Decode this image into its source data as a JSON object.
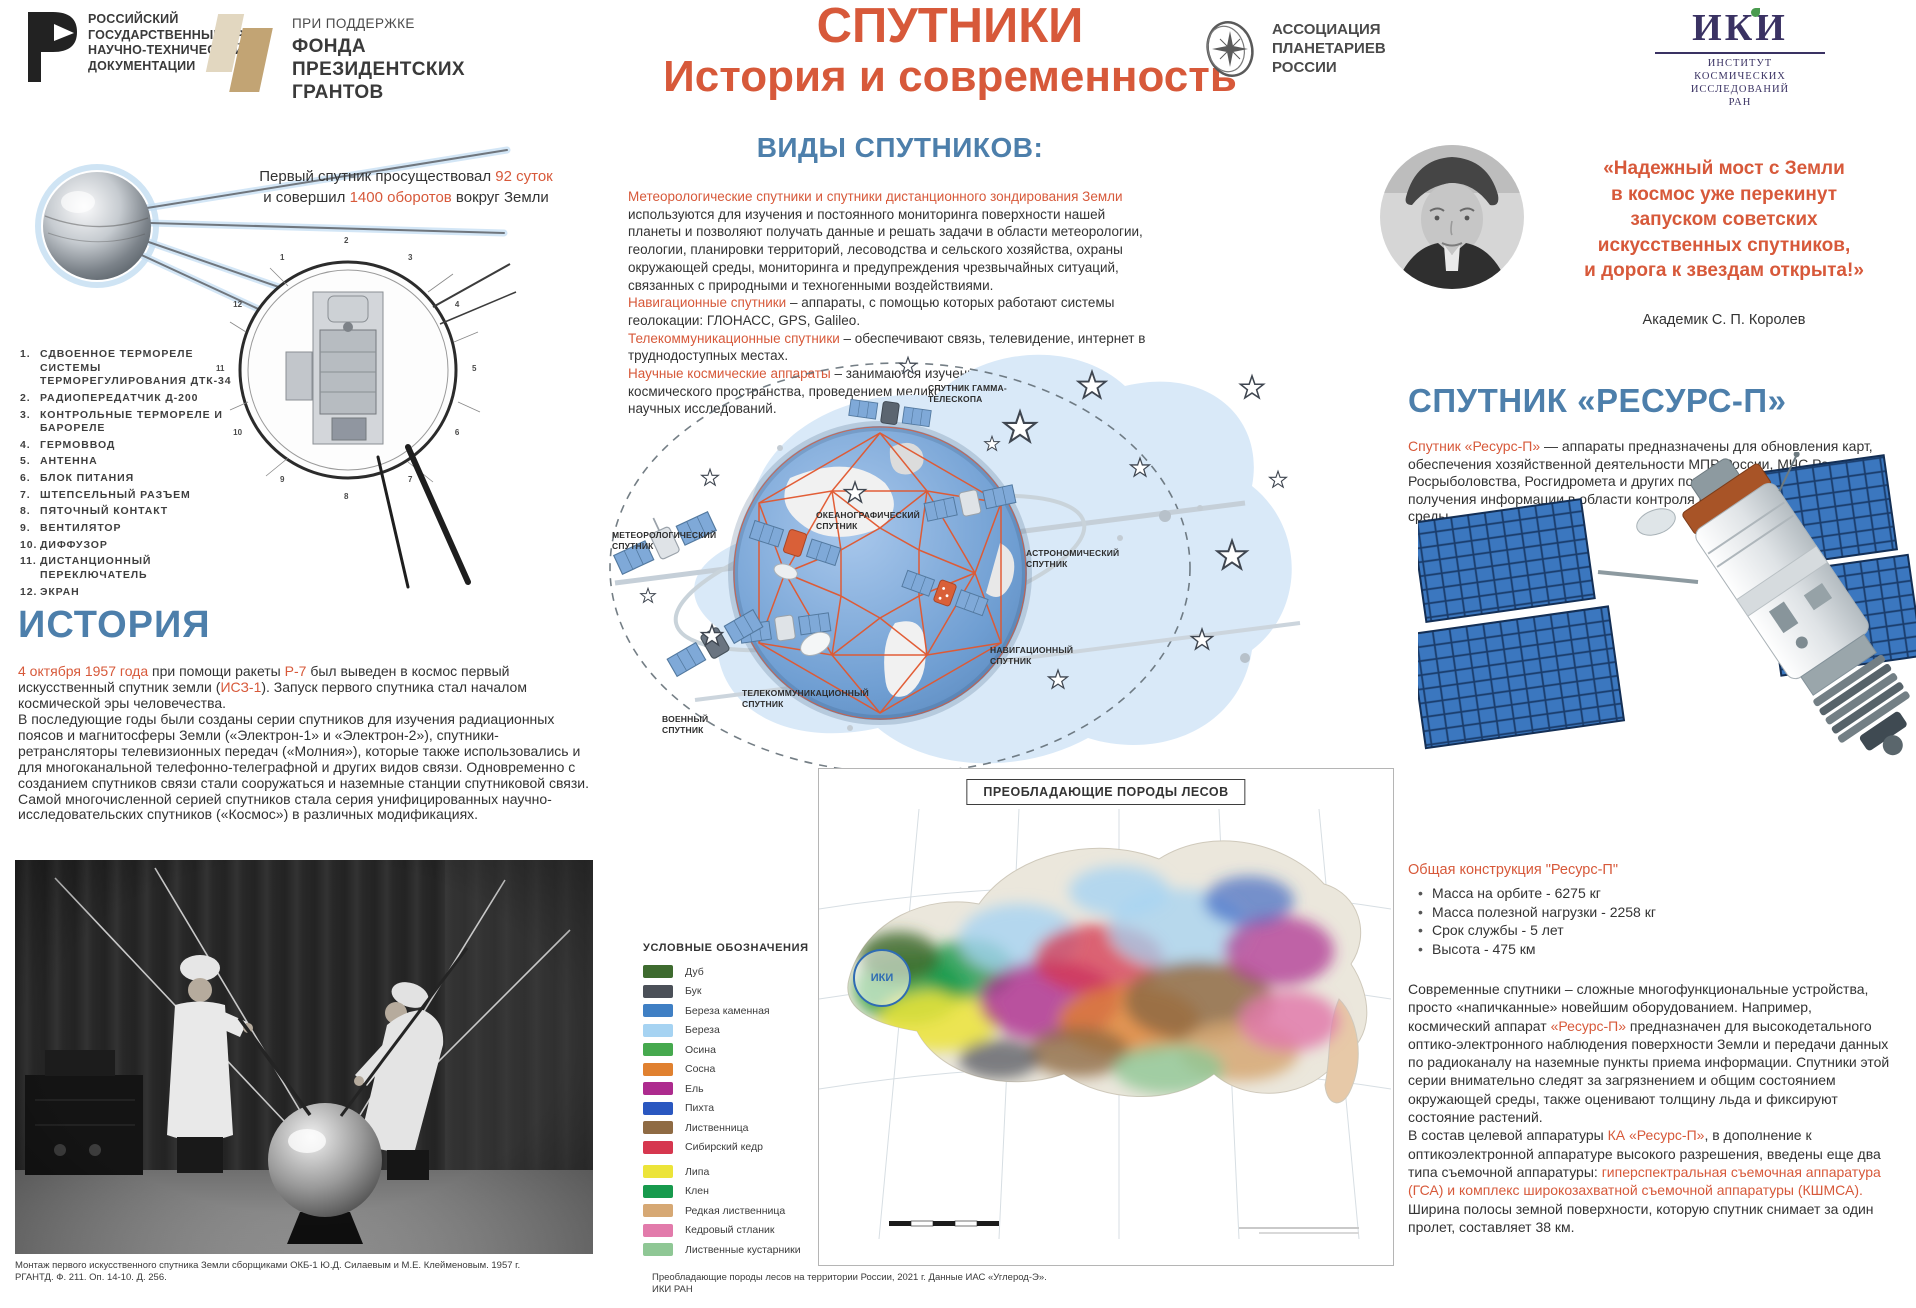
{
  "colors": {
    "accent": "#d7593a",
    "heading_blue": "#4d7fab",
    "blob": "#d9e9f8",
    "mesh": "#e2572e"
  },
  "header": {
    "rgantd": {
      "lines": [
        "РОССИЙСКИЙ",
        "ГОСУДАРСТВЕННЫЙ АРХИВ",
        "НАУЧНО-ТЕХНИЧЕСКОЙ",
        "ДОКУМЕНТАЦИИ"
      ]
    },
    "grants": {
      "support": "ПРИ ПОДДЕРЖКЕ",
      "lines": [
        "ФОНДА",
        "ПРЕЗИДЕНТСКИХ",
        "ГРАНТОВ"
      ]
    },
    "title_line1": "СПУТНИКИ",
    "title_line2": "История и современность",
    "planetarium": {
      "lines": [
        "АССОЦИАЦИЯ",
        "ПЛАНЕТАРИЕВ",
        "РОССИИ"
      ]
    },
    "iki": {
      "abbr": "ИКИ",
      "lines": [
        "ИНСТИТУТ",
        "КОСМИЧЕСКИХ",
        "ИССЛЕДОВАНИЙ",
        "РАН"
      ]
    }
  },
  "left": {
    "first_caption": [
      {
        "t": "Первый спутник просуществовал ",
        "hl": false
      },
      {
        "t": "92 суток",
        "hl": true
      },
      {
        "t": " и совершил ",
        "hl": false
      },
      {
        "t": "1400 оборотов",
        "hl": true
      },
      {
        "t": " вокруг Земли",
        "hl": false
      }
    ],
    "parts": [
      {
        "n": "1.",
        "t": "Сдвоенное термореле системы терморегулирования ДТК-34"
      },
      {
        "n": "2.",
        "t": "Радиопередатчик Д-200"
      },
      {
        "n": "3.",
        "t": "Контрольные термореле и барореле"
      },
      {
        "n": "4.",
        "t": "Гермоввод"
      },
      {
        "n": "5.",
        "t": "Антенна"
      },
      {
        "n": "6.",
        "t": "Блок питания"
      },
      {
        "n": "7.",
        "t": "Штепсельный разъем"
      },
      {
        "n": "8.",
        "t": "Пяточный контакт"
      },
      {
        "n": "9.",
        "t": "Вентилятор"
      },
      {
        "n": "10.",
        "t": "Диффузор"
      },
      {
        "n": "11.",
        "t": "Дистанционный переключатель"
      },
      {
        "n": "12.",
        "t": "Экран"
      }
    ],
    "callouts": [
      "1",
      "2",
      "3",
      "4",
      "5",
      "6",
      "7",
      "8",
      "9",
      "10",
      "11",
      "12"
    ],
    "history_title": "ИСТОРИЯ",
    "history_p1": [
      {
        "t": "4 октября 1957 года",
        "hl": true
      },
      {
        "t": " при помощи ракеты ",
        "hl": false
      },
      {
        "t": "Р-7",
        "hl": true
      },
      {
        "t": " был выведен в космос первый искусственный спутник земли (",
        "hl": false
      },
      {
        "t": "ИСЗ-1",
        "hl": true
      },
      {
        "t": "). Запуск первого спутника стал началом космической эры человечества.",
        "hl": false
      }
    ],
    "history_p2": "В последующие годы были созданы серии спутников для изучения радиационных поясов и магнитосферы Земли («Электрон-1» и «Электрон-2»), спутники-ретрансляторы телевизионных передач («Молния»), которые также использовались и для многоканальной телефонно-телеграфной и других видов связи. Одновременно с созданием спутников связи стали сооружаться и наземные станции спутниковой связи. Самой многочисленной серией спутников стала серия унифицированных научно-исследовательских спутников («Космос») в различных модификациях.",
    "photo_caption": [
      "Монтаж первого искусственного спутника Земли сборщиками ОКБ-1 Ю.Д. Силаевым и М.Е. Клейменовым. 1957 г.",
      "РГАНТД. Ф. 211. Оп. 14-10. Д. 256."
    ]
  },
  "types": {
    "title": "ВИДЫ СПУТНИКОВ:",
    "items": [
      {
        "lead": "Метеорологические спутники и спутники дистанционного зондирования Земли",
        "body": " используются для изучения и постоянного мониторинга поверхности нашей планеты и позволяют получать данные и решать задачи в области метеорологии, геологии, планировки территорий, лесоводства и сельского хозяйства, охраны окружающей среды, мониторинга и предупреждения чрезвычайных ситуаций, связанных с природными и техногенными воздействиями."
      },
      {
        "lead": "Навигационные спутники",
        "body": " – аппараты, с помощью которых работают системы геолокации: ГЛОНАСС, GPS, Galileo."
      },
      {
        "lead": "Телекоммуникационные спутники",
        "body": " – обеспечивают связь, телевидение, интернет в труднодоступных местах."
      },
      {
        "lead": "Научные космические аппараты",
        "body": " – занимаются изучением небесных тел, космического пространства, проведением медико-биологических и других видов научных исследований."
      }
    ]
  },
  "diagram": {
    "labels": [
      "МЕТЕОРОЛОГИЧЕСКИЙ СПУТНИК",
      "ОКЕАНОГРАФИЧЕСКИЙ СПУТНИК",
      "СПУТНИК ГАММА-ТЕЛЕСКОПА",
      "АСТРОНОМИЧЕСКИЙ СПУТНИК",
      "НАВИГАЦИОННЫЙ СПУТНИК",
      "ТЕЛЕКОММУНИКАЦИОННЫЙ СПУТНИК",
      "ВОЕННЫЙ СПУТНИК"
    ]
  },
  "legend": {
    "title": "УСЛОВНЫЕ ОБОЗНАЧЕНИЯ",
    "items": [
      {
        "label": "Дуб",
        "color": "#3e6b2f"
      },
      {
        "label": "Бук",
        "color": "#4b5058"
      },
      {
        "label": "Береза каменная",
        "color": "#3f7fc4"
      },
      {
        "label": "Береза",
        "color": "#a6d3f2"
      },
      {
        "label": "Осина",
        "color": "#46a94e"
      },
      {
        "label": "Сосна",
        "color": "#e08130"
      },
      {
        "label": "Ель",
        "color": "#ad2b8e"
      },
      {
        "label": "Пихта",
        "color": "#2a57c0"
      },
      {
        "label": "Лиственница",
        "color": "#8f6b44"
      },
      {
        "label": "Сибирский кедр",
        "color": "#d6374f"
      },
      {
        "label": "Липа",
        "color": "#ece439"
      },
      {
        "label": "Клен",
        "color": "#179a4d"
      },
      {
        "label": "Редкая лиственница",
        "color": "#d6a874"
      },
      {
        "label": "Кедровый стланик",
        "color": "#e27bab"
      },
      {
        "label": "Лиственные кустарники",
        "color": "#8fc795"
      }
    ]
  },
  "map": {
    "title": "ПРЕОБЛАДАЮЩИЕ ПОРОДЫ ЛЕСОВ",
    "watermark": "ИКИ",
    "caption": [
      "Преобладающие породы лесов на территории России, 2021 г. Данные ИАС «Углерод-Э».",
      "ИКИ РАН"
    ]
  },
  "resurs": {
    "quote_lines": [
      "«Надежный мост с Земли",
      "в космос уже перекинут",
      "запуском советских",
      "искусственных спутников,",
      "и дорога к звездам открыта!»"
    ],
    "attribution": "Академик С. П. Королев",
    "title": "СПУТНИК «РЕСУРС-П»",
    "intro": [
      {
        "t": "Спутник «Ресурс-П»",
        "hl": true
      },
      {
        "t": " — аппараты предназначены для обновления карт, обеспечения хозяйственной деятельности МПР России, МЧС России, Росрыболовства, Росгидромета и других потребителей, а также получения информации в области контроля и охраны окружающей среды.",
        "hl": false
      }
    ],
    "specs_title": "Общая конструкция \"Ресурс-П\"",
    "specs": [
      "Масса на орбите - 6275 кг",
      "Масса полезной нагрузки - 2258 кг",
      "Срок службы - 5 лет",
      "Высота - 475 км"
    ],
    "p1": [
      {
        "t": "Современные спутники – сложные многофункциональные устройства, просто «напичканные» новейшим оборудованием. Например, космический аппарат ",
        "hl": false
      },
      {
        "t": "«Ресурс-П»",
        "hl": true
      },
      {
        "t": " предназначен для высокодетального оптико-электронного наблюдения поверхности Земли и передачи данных по радиоканалу на наземные пункты приема информации. Спутники этой серии внимательно следят за загрязнением и общим состоянием окружающей среды, также оценивают толщину льда и фиксируют состояние растений.",
        "hl": false
      }
    ],
    "p2": [
      {
        "t": "В состав целевой аппаратуры ",
        "hl": false
      },
      {
        "t": "КА «Ресурс-П»",
        "hl": true
      },
      {
        "t": ", в дополнение к оптикоэлектронной аппаратуре высокого разрешения, введены еще два типа съемочной аппаратуры: ",
        "hl": false
      },
      {
        "t": "гиперспектральная съемочная аппаратура (ГСА) и комплекс широкозахватной съемочной аппаратуры (КШМСА).",
        "hl": true
      }
    ],
    "p3": [
      {
        "t": "Ширина полосы земной поверхности, которую спутник снимает за один пролет, составляет 38 км.",
        "hl": false
      }
    ]
  }
}
